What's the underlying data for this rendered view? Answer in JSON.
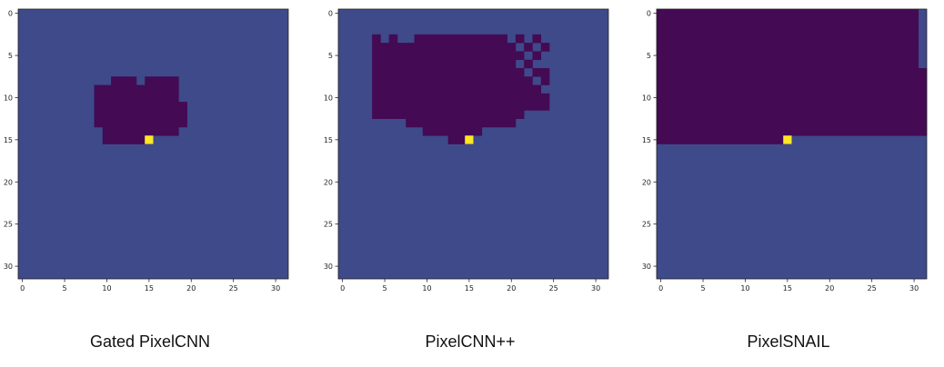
{
  "chart_data": [
    {
      "type": "heatmap",
      "title": "Gated PixelCNN",
      "grid_size": 32,
      "xticks": [
        0,
        5,
        10,
        15,
        20,
        25,
        30
      ],
      "yticks": [
        0,
        5,
        10,
        15,
        20,
        25,
        30
      ],
      "xlim": [
        -0.5,
        31.5
      ],
      "ylim": [
        31.5,
        -0.5
      ],
      "highlight_pixel": [
        15,
        15
      ],
      "dependency_rows": [
        {
          "row": 8,
          "cols": [
            [
              11,
              13
            ],
            [
              15,
              18
            ]
          ]
        },
        {
          "row": 9,
          "cols": [
            [
              9,
              18
            ]
          ]
        },
        {
          "row": 10,
          "cols": [
            [
              9,
              18
            ]
          ]
        },
        {
          "row": 11,
          "cols": [
            [
              9,
              19
            ]
          ]
        },
        {
          "row": 12,
          "cols": [
            [
              9,
              19
            ]
          ]
        },
        {
          "row": 13,
          "cols": [
            [
              9,
              19
            ]
          ]
        },
        {
          "row": 14,
          "cols": [
            [
              10,
              18
            ]
          ]
        },
        {
          "row": 15,
          "cols": [
            [
              10,
              14
            ]
          ]
        }
      ]
    },
    {
      "type": "heatmap",
      "title": "PixelCNN++",
      "grid_size": 32,
      "xticks": [
        0,
        5,
        10,
        15,
        20,
        25,
        30
      ],
      "yticks": [
        0,
        5,
        10,
        15,
        20,
        25,
        30
      ],
      "xlim": [
        -0.5,
        31.5
      ],
      "ylim": [
        31.5,
        -0.5
      ],
      "highlight_pixel": [
        15,
        15
      ],
      "dependency_rows": [
        {
          "row": 3,
          "cols": [
            [
              4,
              4
            ],
            [
              6,
              6
            ],
            [
              9,
              19
            ],
            [
              21,
              21
            ],
            [
              23,
              23
            ]
          ]
        },
        {
          "row": 4,
          "cols": [
            [
              4,
              19
            ],
            [
              20,
              20
            ],
            [
              22,
              22
            ],
            [
              24,
              24
            ]
          ]
        },
        {
          "row": 5,
          "cols": [
            [
              4,
              20
            ],
            [
              21,
              21
            ],
            [
              23,
              23
            ]
          ]
        },
        {
          "row": 6,
          "cols": [
            [
              4,
              19
            ],
            [
              20,
              20
            ],
            [
              22,
              22
            ]
          ]
        },
        {
          "row": 7,
          "cols": [
            [
              4,
              21
            ],
            [
              23,
              24
            ]
          ]
        },
        {
          "row": 8,
          "cols": [
            [
              4,
              22
            ],
            [
              24,
              24
            ]
          ]
        },
        {
          "row": 9,
          "cols": [
            [
              4,
              23
            ]
          ]
        },
        {
          "row": 10,
          "cols": [
            [
              4,
              24
            ]
          ]
        },
        {
          "row": 11,
          "cols": [
            [
              4,
              24
            ]
          ]
        },
        {
          "row": 12,
          "cols": [
            [
              4,
              21
            ]
          ]
        },
        {
          "row": 13,
          "cols": [
            [
              8,
              20
            ]
          ]
        },
        {
          "row": 14,
          "cols": [
            [
              10,
              16
            ]
          ]
        },
        {
          "row": 15,
          "cols": [
            [
              13,
              14
            ]
          ]
        }
      ]
    },
    {
      "type": "heatmap",
      "title": "PixelSNAIL",
      "grid_size": 32,
      "xticks": [
        0,
        5,
        10,
        15,
        20,
        25,
        30
      ],
      "yticks": [
        0,
        5,
        10,
        15,
        20,
        25,
        30
      ],
      "xlim": [
        -0.5,
        31.5
      ],
      "ylim": [
        31.5,
        -0.5
      ],
      "highlight_pixel": [
        15,
        15
      ],
      "dependency_rows": [
        {
          "row": 0,
          "cols": [
            [
              0,
              30
            ]
          ]
        },
        {
          "row": 1,
          "cols": [
            [
              0,
              30
            ]
          ]
        },
        {
          "row": 2,
          "cols": [
            [
              0,
              30
            ]
          ]
        },
        {
          "row": 3,
          "cols": [
            [
              0,
              30
            ]
          ]
        },
        {
          "row": 4,
          "cols": [
            [
              0,
              30
            ]
          ]
        },
        {
          "row": 5,
          "cols": [
            [
              0,
              30
            ]
          ]
        },
        {
          "row": 6,
          "cols": [
            [
              0,
              30
            ]
          ]
        },
        {
          "row": 7,
          "cols": [
            [
              0,
              31
            ]
          ]
        },
        {
          "row": 8,
          "cols": [
            [
              0,
              31
            ]
          ]
        },
        {
          "row": 9,
          "cols": [
            [
              0,
              31
            ]
          ]
        },
        {
          "row": 10,
          "cols": [
            [
              0,
              31
            ]
          ]
        },
        {
          "row": 11,
          "cols": [
            [
              0,
              31
            ]
          ]
        },
        {
          "row": 12,
          "cols": [
            [
              0,
              31
            ]
          ]
        },
        {
          "row": 13,
          "cols": [
            [
              0,
              31
            ]
          ]
        },
        {
          "row": 14,
          "cols": [
            [
              0,
              31
            ]
          ]
        },
        {
          "row": 15,
          "cols": [
            [
              0,
              14
            ]
          ]
        }
      ]
    }
  ],
  "colors": {
    "background": "#3e4a89",
    "dependency": "#440a53",
    "highlight": "#fde725",
    "axis": "#222222"
  },
  "captions": [
    "Gated PixelCNN",
    "PixelCNN++",
    "PixelSNAIL"
  ]
}
